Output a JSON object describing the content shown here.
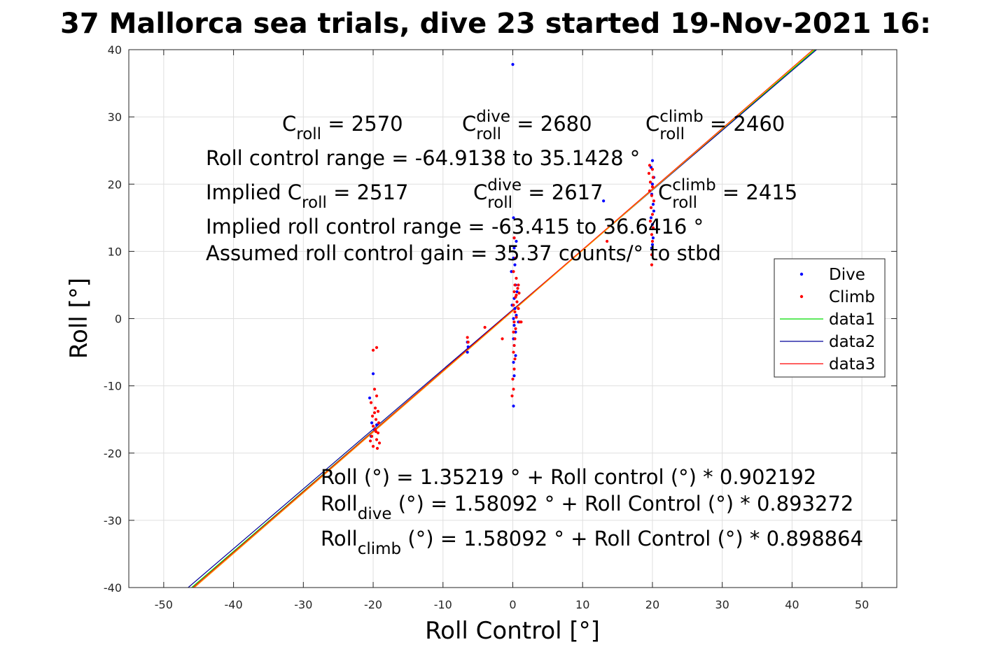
{
  "chart_data": {
    "type": "scatter",
    "title": "37 Mallorca sea trials, dive 23 started 19-Nov-2021 16:",
    "xlabel": "Roll Control [°]",
    "ylabel": "Roll [°]",
    "xlim": [
      -55,
      55
    ],
    "ylim": [
      -40,
      40
    ],
    "xticks": [
      -50,
      -40,
      -30,
      -20,
      -10,
      0,
      10,
      20,
      30,
      40,
      50
    ],
    "yticks": [
      -40,
      -30,
      -20,
      -10,
      0,
      10,
      20,
      30,
      40
    ],
    "grid": true,
    "legend": {
      "placement": "right",
      "entries": [
        "Dive",
        "Climb",
        "data1",
        "data2",
        "data3"
      ]
    },
    "series": [
      {
        "name": "Dive",
        "kind": "points",
        "color": "#0000ff",
        "points": [
          [
            0,
            37.8
          ],
          [
            0.1,
            15
          ],
          [
            0.2,
            12
          ],
          [
            0.5,
            11.5
          ],
          [
            0.2,
            10.5
          ],
          [
            0.1,
            9
          ],
          [
            0.3,
            8
          ],
          [
            -0.2,
            7
          ],
          [
            0.4,
            5
          ],
          [
            0.6,
            4
          ],
          [
            0.2,
            3
          ],
          [
            -0.1,
            2
          ],
          [
            0.3,
            1.5
          ],
          [
            0.5,
            0.5
          ],
          [
            0.1,
            0
          ],
          [
            0.8,
            -0.5
          ],
          [
            0.2,
            -1
          ],
          [
            0.4,
            -2
          ],
          [
            0.1,
            -3
          ],
          [
            0.2,
            -4
          ],
          [
            0.4,
            -5.5
          ],
          [
            0.1,
            -6.5
          ],
          [
            0.2,
            -8.5
          ],
          [
            0.1,
            -13
          ],
          [
            -6.5,
            -3.5
          ],
          [
            -6.4,
            -4.2
          ],
          [
            -6.5,
            -5
          ],
          [
            13,
            17.5
          ],
          [
            20,
            23.5
          ],
          [
            19.8,
            22.5
          ],
          [
            20.2,
            21
          ],
          [
            20,
            20
          ],
          [
            19.9,
            18.5
          ],
          [
            20.1,
            17
          ],
          [
            20.2,
            16
          ],
          [
            19.8,
            15
          ],
          [
            20,
            14
          ],
          [
            20.1,
            12
          ],
          [
            20,
            11
          ],
          [
            19.9,
            10.5
          ],
          [
            -20,
            -8.2
          ],
          [
            -20.5,
            -11.8
          ],
          [
            -20.2,
            -15.5
          ],
          [
            -19.8,
            -16.5
          ],
          [
            -20.3,
            -17.5
          ],
          [
            -19.5,
            -15.8
          ]
        ]
      },
      {
        "name": "Climb",
        "kind": "points",
        "color": "#ff0000",
        "points": [
          [
            -19.5,
            -4.3
          ],
          [
            -20,
            -4.7
          ],
          [
            -19.8,
            -10.5
          ],
          [
            -19.5,
            -11.5
          ],
          [
            -20.3,
            -12.5
          ],
          [
            -19.7,
            -13.3
          ],
          [
            -19.3,
            -13.8
          ],
          [
            -20.1,
            -14.5
          ],
          [
            -19.6,
            -15
          ],
          [
            -19.2,
            -15.5
          ],
          [
            -20,
            -16
          ],
          [
            -19.7,
            -16.5
          ],
          [
            -19.3,
            -17
          ],
          [
            -20.2,
            -17.5
          ],
          [
            -19.5,
            -18
          ],
          [
            -19.1,
            -18.5
          ],
          [
            -20,
            -19
          ],
          [
            -19.4,
            -19.3
          ],
          [
            -19.8,
            -14
          ],
          [
            -19.6,
            -16.8
          ],
          [
            -20.4,
            -18.2
          ],
          [
            -6.5,
            -2.8
          ],
          [
            -6.4,
            -3.5
          ],
          [
            -4,
            -1.3
          ],
          [
            -1.5,
            -3
          ],
          [
            0.2,
            12
          ],
          [
            0.4,
            9
          ],
          [
            0.1,
            7
          ],
          [
            0.5,
            6
          ],
          [
            0.3,
            5
          ],
          [
            0.7,
            4.5
          ],
          [
            0.2,
            4
          ],
          [
            0.9,
            3.8
          ],
          [
            0.4,
            3.2
          ],
          [
            0.6,
            2.5
          ],
          [
            0.1,
            2
          ],
          [
            0.8,
            1.5
          ],
          [
            0.3,
            1
          ],
          [
            0.5,
            0.2
          ],
          [
            0.2,
            -0.5
          ],
          [
            1,
            -0.5
          ],
          [
            0.4,
            -1.5
          ],
          [
            0.1,
            -2
          ],
          [
            0.3,
            -3
          ],
          [
            0.2,
            -4
          ],
          [
            0.1,
            -5
          ],
          [
            0.3,
            -6
          ],
          [
            0.2,
            -7.5
          ],
          [
            0,
            -9
          ],
          [
            0.1,
            -10.5
          ],
          [
            -0.1,
            -11.5
          ],
          [
            1.2,
            -0.5
          ],
          [
            0.5,
            3.5
          ],
          [
            0.8,
            5
          ],
          [
            13.5,
            11.5
          ],
          [
            19.6,
            22.8
          ],
          [
            20,
            22.2
          ],
          [
            19.5,
            21.6
          ],
          [
            20.1,
            21
          ],
          [
            19.7,
            20.3
          ],
          [
            20,
            19.6
          ],
          [
            19.6,
            19
          ],
          [
            19.9,
            18.3
          ],
          [
            20.2,
            17.5
          ],
          [
            19.8,
            16.5
          ],
          [
            20,
            15.5
          ],
          [
            19.7,
            14.5
          ],
          [
            20.1,
            13.5
          ],
          [
            19.9,
            12.5
          ],
          [
            20,
            11.5
          ],
          [
            19.9,
            9.5
          ],
          [
            19.9,
            8
          ]
        ]
      },
      {
        "name": "data1",
        "kind": "line",
        "color": "#00dd00",
        "x": [
          -46,
          43.3
        ],
        "y": [
          -40,
          40
        ]
      },
      {
        "name": "data2",
        "kind": "line",
        "color": "#000099",
        "x": [
          -46.5,
          43.5
        ],
        "y": [
          -40,
          40
        ]
      },
      {
        "name": "data3",
        "kind": "line",
        "color": "#ff0000",
        "x": [
          -45.8,
          43.0
        ],
        "y": [
          -40,
          40
        ]
      },
      {
        "name": "",
        "kind": "line",
        "color": "#ff9900",
        "x": [
          -45.6,
          43.1
        ],
        "y": [
          -40,
          40
        ]
      }
    ],
    "annotations": [
      {
        "id": "c-roll",
        "base": "C",
        "sub": "roll",
        "rest": " = 2570"
      },
      {
        "id": "c-roll-dive",
        "base": "C",
        "sub": "roll",
        "sup": "dive",
        "rest": " = 2680"
      },
      {
        "id": "c-roll-climb",
        "base": "C",
        "sub": "roll",
        "sup": "climb",
        "rest": " = 2460"
      },
      {
        "id": "range",
        "base": "Roll control range = -64.9138 to 35.1428 °"
      },
      {
        "id": "implied-c-roll",
        "base": "Implied C",
        "sub": "roll",
        "rest": " = 2517"
      },
      {
        "id": "implied-c-roll-dive",
        "base": "C",
        "sub": "roll",
        "sup": "dive",
        "rest": " = 2617"
      },
      {
        "id": "implied-c-roll-climb",
        "base": "C",
        "sub": "roll",
        "sup": "climb",
        "rest": " = 2415"
      },
      {
        "id": "implied-range",
        "base": "Implied roll control range = -63.415 to 36.6416 °"
      },
      {
        "id": "gain",
        "base": "Assumed roll control gain = 35.37 counts/° to stbd"
      },
      {
        "id": "fit-all",
        "base": "Roll (°) = 1.35219 ° + Roll control (°) * 0.902192"
      },
      {
        "id": "fit-dive",
        "base": "Roll",
        "sub": "dive",
        "rest": " (°) = 1.58092 ° + Roll Control (°) * 0.893272"
      },
      {
        "id": "fit-climb",
        "base": "Roll",
        "sub": "climb",
        "rest": " (°) = 1.58092 ° + Roll Control (°) * 0.898864"
      }
    ]
  }
}
